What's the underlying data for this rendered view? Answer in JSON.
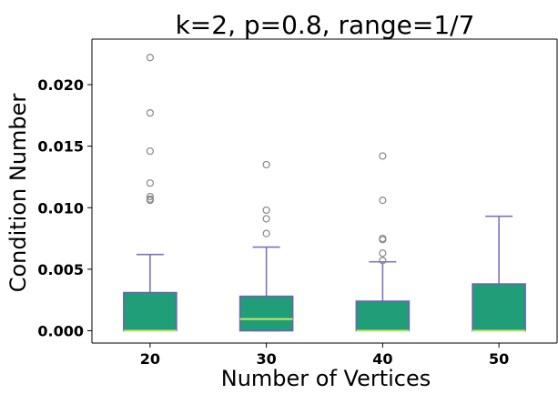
{
  "chart_data": {
    "type": "box",
    "title": "k=2, p=0.8, range=1/7",
    "xlabel": "Number of Vertices",
    "ylabel": "Condition Number",
    "categories": [
      "20",
      "30",
      "40",
      "50"
    ],
    "ylim": [
      -0.001,
      0.0237
    ],
    "yticks": [
      0.0,
      0.005,
      0.01,
      0.015,
      0.02
    ],
    "ytick_labels": [
      "0.000",
      "0.005",
      "0.010",
      "0.015",
      "0.020"
    ],
    "grid": false,
    "colors": {
      "box_fill": "#1f9e77",
      "box_edge": "#6b63b5",
      "whisker": "#7b73c0",
      "median": "#c8e86b",
      "flier": "#888888"
    },
    "boxes": [
      {
        "category": "20",
        "whislo": 0.0,
        "q1": 0.0,
        "median": 0.0,
        "q3": 0.0031,
        "whishi": 0.0062,
        "fliers": [
          0.0222,
          0.0177,
          0.0146,
          0.012,
          0.0109,
          0.0107,
          0.0106
        ]
      },
      {
        "category": "30",
        "whislo": 0.0,
        "q1": 0.0,
        "median": 0.00095,
        "q3": 0.0028,
        "whishi": 0.0068,
        "fliers": [
          0.0135,
          0.0098,
          0.0091,
          0.0079
        ]
      },
      {
        "category": "40",
        "whislo": 0.0,
        "q1": 0.0,
        "median": 0.0,
        "q3": 0.0024,
        "whishi": 0.0056,
        "fliers": [
          0.0142,
          0.0106,
          0.0075,
          0.0074,
          0.0063,
          0.0057
        ]
      },
      {
        "category": "50",
        "whislo": 0.0,
        "q1": 0.0,
        "median": 0.0,
        "q3": 0.0038,
        "whishi": 0.0093,
        "fliers": []
      }
    ]
  }
}
